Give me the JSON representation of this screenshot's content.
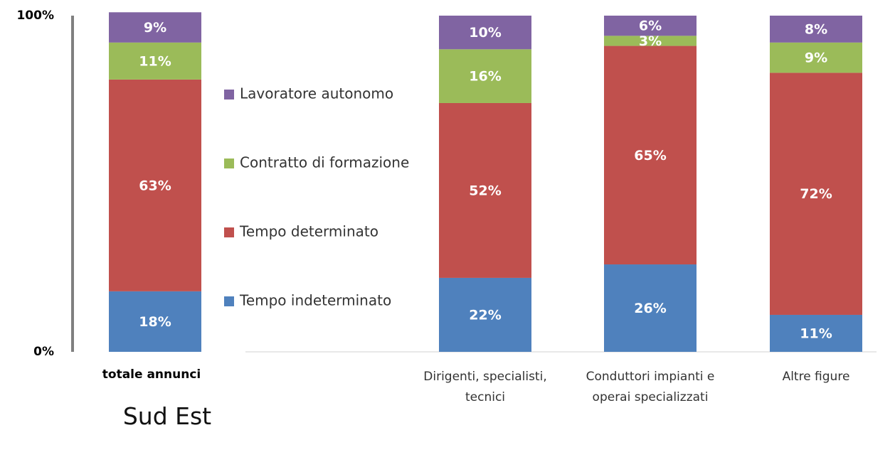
{
  "chart_data": {
    "type": "stacked_bar",
    "subtitle": "Sud Est",
    "categories": [
      "totale annunci",
      "Dirigenti, specialisti, tecnici",
      "Conduttori impianti e operai specializzati",
      "Altre figure"
    ],
    "series": [
      {
        "name": "Tempo indeterminato",
        "color": "#4f81bd",
        "values": [
          18,
          22,
          26,
          11
        ],
        "value_labels": [
          "18%",
          "22%",
          "26%",
          "11%"
        ]
      },
      {
        "name": "Tempo determinato",
        "color": "#c0504d",
        "values": [
          63,
          52,
          65,
          72
        ],
        "value_labels": [
          "63%",
          "52%",
          "65%",
          "72%"
        ]
      },
      {
        "name": "Contratto di formazione",
        "color": "#9bbb59",
        "values": [
          11,
          16,
          3,
          9
        ],
        "value_labels": [
          "11%",
          "16%",
          "3%",
          "9%"
        ]
      },
      {
        "name": "Lavoratore autonomo",
        "color": "#8064a2",
        "values": [
          9,
          10,
          6,
          8
        ],
        "value_labels": [
          "9%",
          "10%",
          "6%",
          "8%"
        ]
      }
    ],
    "ylim": [
      0,
      100
    ],
    "yticks": [
      {
        "value": 0,
        "label": "0%"
      },
      {
        "value": 100,
        "label": "100%"
      }
    ],
    "grid": false
  }
}
